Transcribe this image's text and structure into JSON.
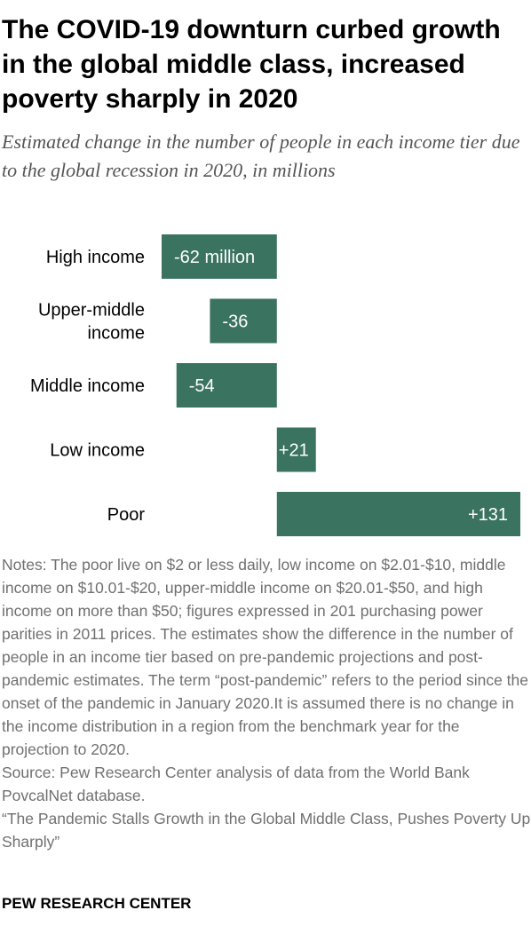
{
  "title": "The COVID-19 downturn curbed growth in the global middle class, increased poverty sharply in 2020",
  "subtitle": "Estimated change in the number of people in each income tier due to the global recession in 2020, in millions",
  "chart_data": {
    "type": "bar",
    "orientation": "horizontal",
    "categories": [
      "High income",
      "Upper-middle income",
      "Middle income",
      "Low income",
      "Poor"
    ],
    "category_lines": [
      [
        "High income"
      ],
      [
        "Upper-middle",
        "income"
      ],
      [
        "Middle income"
      ],
      [
        "Low income"
      ],
      [
        "Poor"
      ]
    ],
    "values": [
      -62,
      -36,
      -54,
      21,
      131
    ],
    "labels": [
      "-62 million",
      "-36",
      "-54",
      "+21",
      "+131"
    ],
    "unit": "millions",
    "xlim": [
      -62,
      131
    ],
    "grid": false,
    "bar_color": "#3a735f",
    "label_color": "#ffffff"
  },
  "notes": {
    "notes_text": "Notes: The poor live on $2 or less daily, low income on $2.01-$10, middle income on $10.01-$20, upper-middle income on $20.01-$50, and high income on more than $50; figures expressed in 201 purchasing power parities in 2011 prices. The estimates show the difference in the number of people in an income tier based on pre-pandemic projections and post-pandemic estimates. The term “post-pandemic” refers to the period since the onset of the pandemic in January 2020.It is assumed there is no change in the income distribution in a region from the benchmark year for the projection to 2020.",
    "source_text": "Source: Pew Research Center analysis of data from the World Bank PovcalNet database.",
    "report_text": "“The Pandemic Stalls Growth in the Global Middle Class, Pushes Poverty Up Sharply”"
  },
  "brand": "PEW RESEARCH CENTER"
}
